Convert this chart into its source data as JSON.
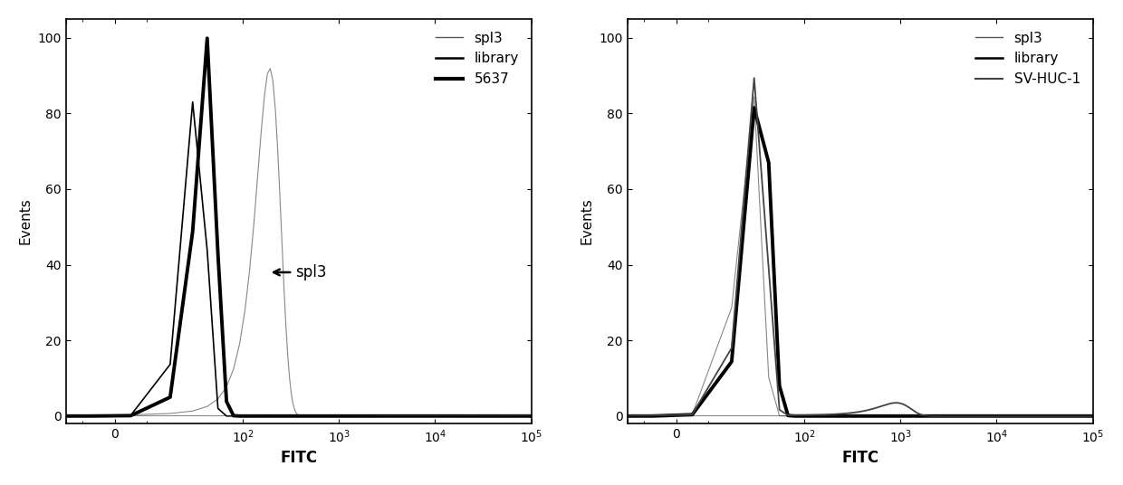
{
  "fig_width": 12.4,
  "fig_height": 5.36,
  "background_color": "#ffffff",
  "panel1": {
    "xlabel": "FITC",
    "ylabel": "Events",
    "ylim": [
      -2,
      105
    ],
    "legend_labels": [
      "spl3",
      "library",
      "5637"
    ],
    "annotation_text": "spl3"
  },
  "panel2": {
    "xlabel": "FITC",
    "ylabel": "Events",
    "ylim": [
      -2,
      105
    ],
    "legend_labels": [
      "spl3",
      "library",
      "SV-HUC-1"
    ]
  },
  "yticks": [
    0,
    20,
    40,
    60,
    80,
    100
  ],
  "xtick_labels": [
    "0",
    "10$^2$",
    "10$^3$",
    "10$^4$",
    "10$^5$"
  ]
}
